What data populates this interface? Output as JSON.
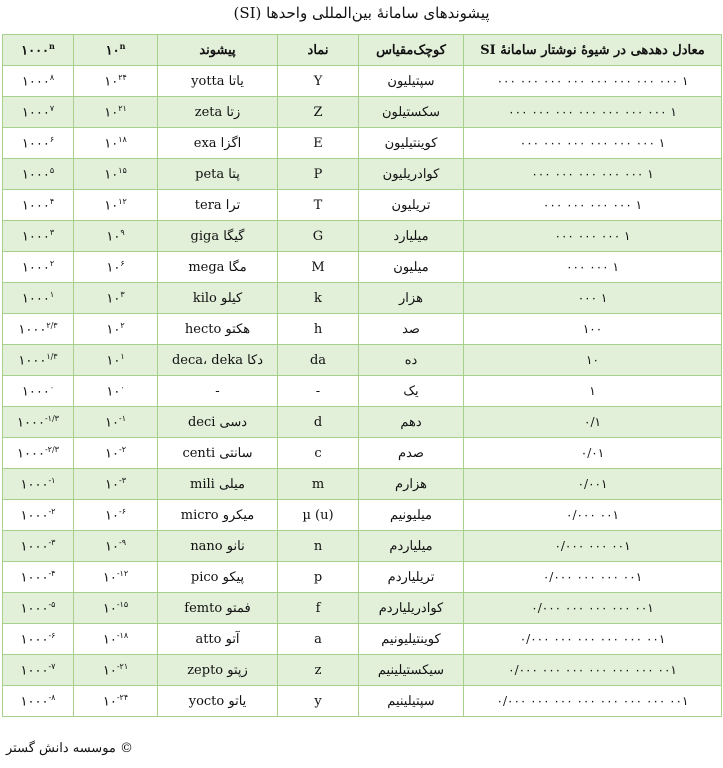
{
  "title": "پیشوندهای سامانهٔ بین‌المللی واحدها (SI)",
  "headers": {
    "decimal": "معادل دهدهی در شیوهٔ نوشتار سامانهٔ SI",
    "short_scale": "کوچک‌مقیاس",
    "symbol": "نماد",
    "prefix": "پیشوند",
    "pow10": "۱۰",
    "pow1000": "۱۰۰۰",
    "exp": "n"
  },
  "rows": [
    {
      "decimal": "۱ ۰۰۰ ۰۰۰ ۰۰۰ ۰۰۰ ۰۰۰ ۰۰۰ ۰۰۰ ۰۰۰",
      "short": "سپتیلیون",
      "symbol": "Y",
      "prefix": "یاتا yotta",
      "e10": "۲۴",
      "e1000": "۸"
    },
    {
      "decimal": "۱ ۰۰۰ ۰۰۰ ۰۰۰ ۰۰۰ ۰۰۰ ۰۰۰ ۰۰۰",
      "short": "سکستیلون",
      "symbol": "Z",
      "prefix": "زتا zeta",
      "e10": "۲۱",
      "e1000": "۷"
    },
    {
      "decimal": "۱ ۰۰۰ ۰۰۰ ۰۰۰ ۰۰۰ ۰۰۰ ۰۰۰",
      "short": "کوینتیلیون",
      "symbol": "E",
      "prefix": "اگزا exa",
      "e10": "۱۸",
      "e1000": "۶"
    },
    {
      "decimal": "۱ ۰۰۰ ۰۰۰ ۰۰۰ ۰۰۰ ۰۰۰",
      "short": "کوادریلیون",
      "symbol": "P",
      "prefix": "پتا peta",
      "e10": "۱۵",
      "e1000": "۵"
    },
    {
      "decimal": "۱ ۰۰۰ ۰۰۰ ۰۰۰ ۰۰۰",
      "short": "تریلیون",
      "symbol": "T",
      "prefix": "ترا tera",
      "e10": "۱۲",
      "e1000": "۴"
    },
    {
      "decimal": "۱ ۰۰۰ ۰۰۰ ۰۰۰",
      "short": "میلیارد",
      "symbol": "G",
      "prefix": "گیگا giga",
      "e10": "۹",
      "e1000": "۳"
    },
    {
      "decimal": "۱ ۰۰۰ ۰۰۰",
      "short": "میلیون",
      "symbol": "M",
      "prefix": "مگا mega",
      "e10": "۶",
      "e1000": "۲"
    },
    {
      "decimal": "۱ ۰۰۰",
      "short": "هزار",
      "symbol": "k",
      "prefix": "کیلو kilo",
      "e10": "۳",
      "e1000": "۱"
    },
    {
      "decimal": "۱۰۰",
      "short": "صد",
      "symbol": "h",
      "prefix": "هکتو hecto",
      "e10": "۲",
      "e1000": "۲/۳"
    },
    {
      "decimal": "۱۰",
      "short": "ده",
      "symbol": "da",
      "prefix": "دکا deca، deka",
      "e10": "۱",
      "e1000": "۱/۳"
    },
    {
      "decimal": "۱",
      "short": "یک",
      "symbol": "-",
      "prefix": "-",
      "e10": "۰",
      "e1000": "۰"
    },
    {
      "decimal": "۰/۱",
      "short": "دهم",
      "symbol": "d",
      "prefix": "دسی deci",
      "e10": "-۱",
      "e1000": "-۱/۳"
    },
    {
      "decimal": "۰/۰۱",
      "short": "صدم",
      "symbol": "c",
      "prefix": "سانتی centi",
      "e10": "-۲",
      "e1000": "-۲/۳"
    },
    {
      "decimal": "۰/۰۰۱",
      "short": "هزارم",
      "symbol": "m",
      "prefix": "میلی mili",
      "e10": "-۳",
      "e1000": "-۱"
    },
    {
      "decimal": "۰/۰۰۰ ۰۰۱",
      "short": "میلیونیم",
      "symbol": "(u) µ",
      "prefix": "میکرو micro",
      "e10": "-۶",
      "e1000": "-۲"
    },
    {
      "decimal": "۰/۰۰۰ ۰۰۰ ۰۰۱",
      "short": "میلیاردم",
      "symbol": "n",
      "prefix": "نانو nano",
      "e10": "-۹",
      "e1000": "-۳"
    },
    {
      "decimal": "۰/۰۰۰ ۰۰۰ ۰۰۰ ۰۰۱",
      "short": "تریلیاردم",
      "symbol": "p",
      "prefix": "پیکو pico",
      "e10": "-۱۲",
      "e1000": "-۴"
    },
    {
      "decimal": "۰/۰۰۰ ۰۰۰ ۰۰۰ ۰۰۰ ۰۰۱",
      "short": "کوادریلیاردم",
      "symbol": "f",
      "prefix": "فمتو femto",
      "e10": "-۱۵",
      "e1000": "-۵"
    },
    {
      "decimal": "۰/۰۰۰ ۰۰۰ ۰۰۰ ۰۰۰ ۰۰۰ ۰۰۱",
      "short": "کوینتیلیونیم",
      "symbol": "a",
      "prefix": "آتو atto",
      "e10": "-۱۸",
      "e1000": "-۶"
    },
    {
      "decimal": "۰/۰۰۰ ۰۰۰ ۰۰۰ ۰۰۰ ۰۰۰ ۰۰۰ ۰۰۱",
      "short": "سیکستیلینیم",
      "symbol": "z",
      "prefix": "زپتو zepto",
      "e10": "-۲۱",
      "e1000": "-۷"
    },
    {
      "decimal": "۰/۰۰۰ ۰۰۰ ۰۰۰ ۰۰۰ ۰۰۰ ۰۰۰ ۰۰۰ ۰۰۱",
      "short": "سپتیلینیم",
      "symbol": "y",
      "prefix": "یاتو yocto",
      "e10": "-۲۴",
      "e1000": "-۸"
    }
  ],
  "footer": "© موسسه دانش گستر",
  "colors": {
    "border": "#a8d08d",
    "header_bg": "#e2efd9",
    "stripe": "#e2efd9"
  }
}
